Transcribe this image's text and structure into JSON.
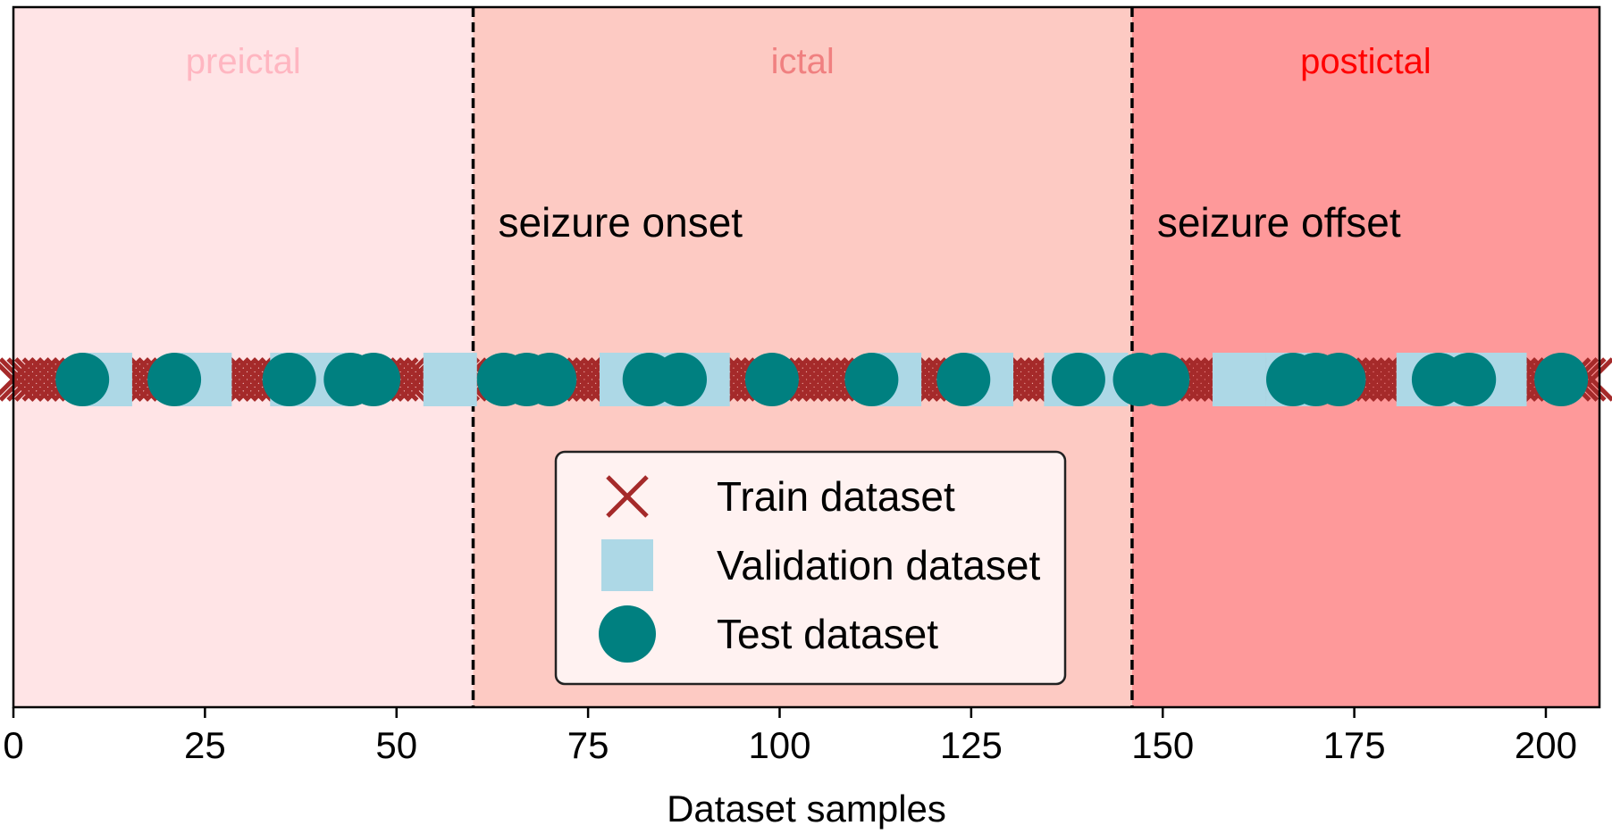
{
  "chart_data": {
    "type": "scatter",
    "title": "",
    "xlabel": "Dataset samples",
    "ylabel": "",
    "xlim": [
      0,
      207
    ],
    "xticks": [
      0,
      25,
      50,
      75,
      100,
      125,
      150,
      175,
      200
    ],
    "grid": false,
    "legend_position": "lower-center",
    "regions": [
      {
        "name": "preictal",
        "start": 0,
        "end": 60,
        "fill": "#ffe4e6",
        "label_color": "#ffb6c1"
      },
      {
        "name": "ictal",
        "start": 60,
        "end": 146,
        "fill": "#fdcac3",
        "label_color": "#f08080"
      },
      {
        "name": "postictal",
        "start": 146,
        "end": 207,
        "fill": "#fe999a",
        "label_color": "#ff0000"
      }
    ],
    "annotations": [
      {
        "text": "seizure onset",
        "x": 60
      },
      {
        "text": "seizure offset",
        "x": 146
      }
    ],
    "series": [
      {
        "name": "Train dataset",
        "marker": "x",
        "color": "#a52a2a",
        "x": [
          0,
          1,
          2,
          3,
          4,
          5,
          6,
          7,
          8,
          10,
          11,
          12,
          13,
          14,
          15,
          16,
          17,
          18,
          19,
          20,
          22,
          23,
          24,
          26,
          27,
          28,
          29,
          30,
          31,
          32,
          33,
          34,
          35,
          37,
          38,
          39,
          41,
          42,
          43,
          45,
          46,
          48,
          49,
          50,
          51,
          52,
          53,
          54,
          57,
          58,
          59,
          61,
          62,
          65,
          66,
          68,
          69,
          71,
          72,
          73,
          74,
          75,
          76,
          77,
          78,
          80,
          81,
          82,
          84,
          86,
          88,
          89,
          90,
          91,
          92,
          93,
          94,
          95,
          96,
          97,
          98,
          100,
          101,
          102,
          103,
          104,
          105,
          106,
          107,
          108,
          109,
          110,
          111,
          113,
          114,
          115,
          116,
          117,
          118,
          119,
          120,
          121,
          122,
          123,
          125,
          126,
          127,
          128,
          129,
          130,
          131,
          132,
          133,
          134,
          135,
          136,
          137,
          138,
          140,
          141,
          142,
          143,
          144,
          145,
          147,
          148,
          149,
          151,
          152,
          153,
          154,
          155,
          156,
          157,
          158,
          159,
          160,
          161,
          162,
          163,
          164,
          165,
          166,
          168,
          169,
          171,
          172,
          174,
          175,
          176,
          177,
          178,
          179,
          180,
          181,
          182,
          183,
          184,
          185,
          187,
          188,
          189,
          191,
          192,
          193,
          194,
          195,
          196,
          197,
          198,
          199,
          200,
          201,
          203,
          204,
          205,
          206
        ]
      },
      {
        "name": "Validation dataset",
        "marker": "square",
        "color": "#add8e6",
        "x": [
          12,
          25,
          37,
          40,
          57,
          80,
          87,
          90,
          115,
          127,
          138,
          142,
          160,
          167,
          184,
          191,
          194
        ]
      },
      {
        "name": "Test dataset",
        "marker": "circle",
        "color": "#008080",
        "x": [
          9,
          21,
          36,
          44,
          47,
          64,
          67,
          70,
          83,
          87,
          99,
          112,
          124,
          139,
          147,
          150,
          167,
          170,
          173,
          186,
          190,
          202
        ]
      }
    ]
  }
}
